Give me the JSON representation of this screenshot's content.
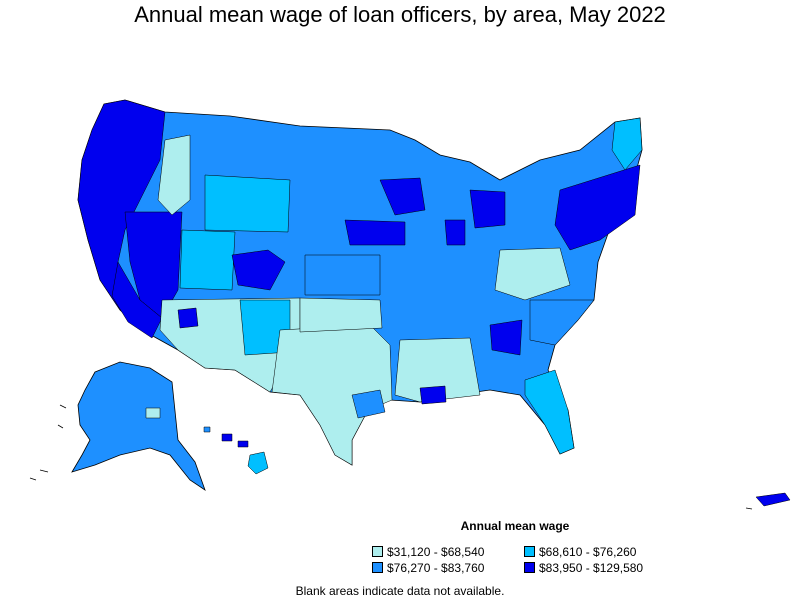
{
  "title": "Annual mean wage of loan officers, by area, May 2022",
  "legend": {
    "title": "Annual mean wage",
    "items": [
      {
        "label": "$31,120 - $68,540",
        "color": "#aeeeee"
      },
      {
        "label": "$68,610 - $76,260",
        "color": "#00bfff"
      },
      {
        "label": "$76,270 - $83,760",
        "color": "#1e90ff"
      },
      {
        "label": "$83,950 - $129,580",
        "color": "#0000ee"
      }
    ]
  },
  "note": "Blank areas indicate data not available.",
  "colors": {
    "border": "#000000",
    "low": "#aeeeee",
    "midlow": "#00bfff",
    "midhigh": "#1e90ff",
    "high": "#0000ee"
  }
}
